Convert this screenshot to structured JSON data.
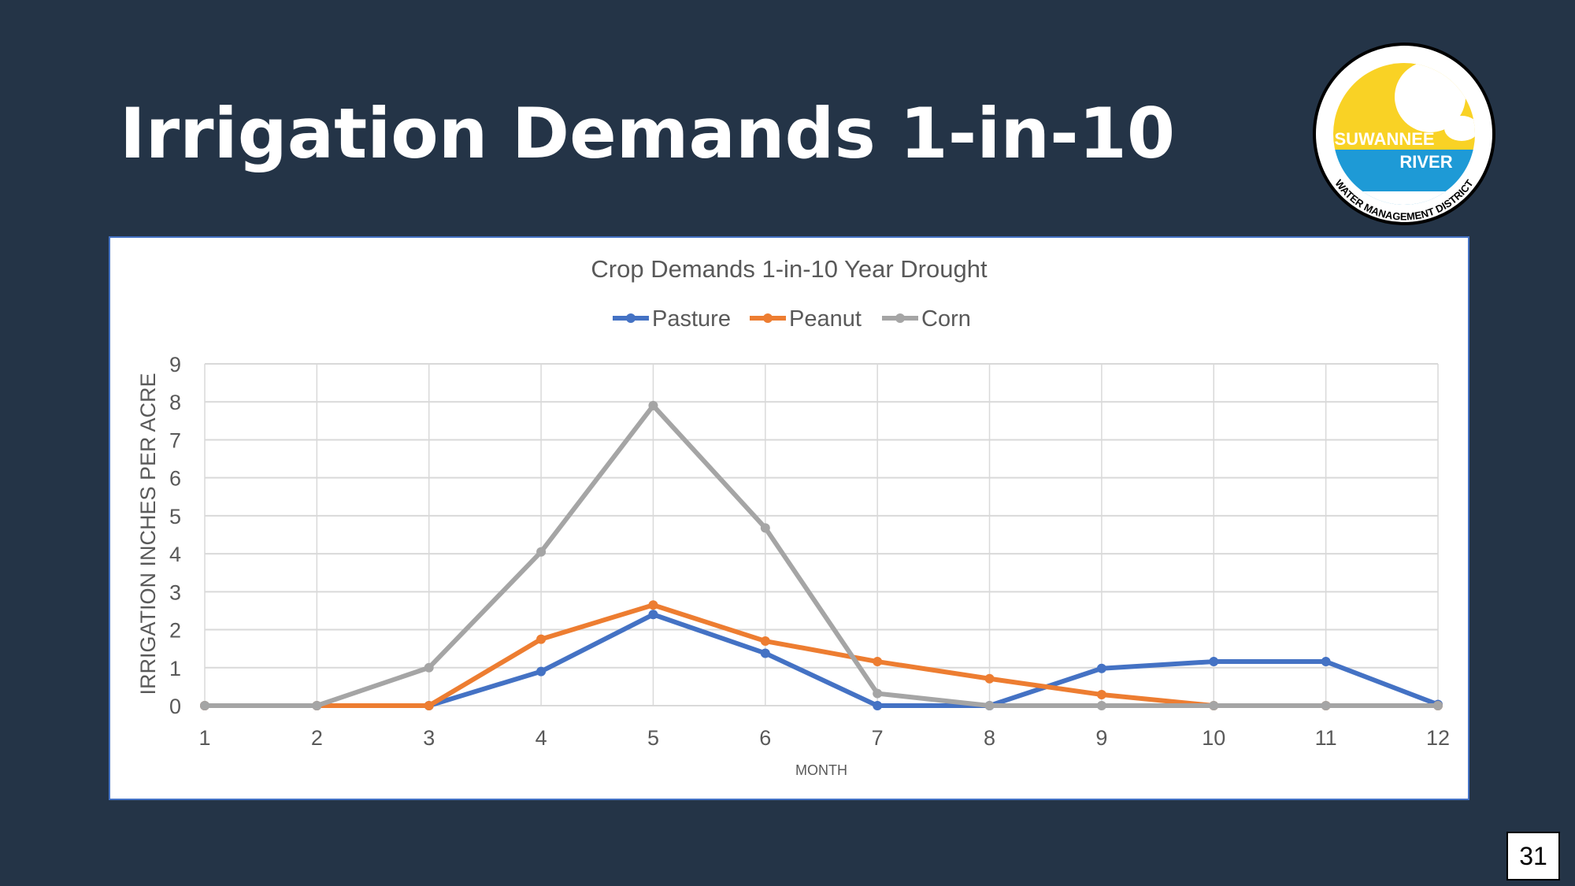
{
  "slide": {
    "title": "Irrigation Demands 1-in-10",
    "page_number": "31",
    "logo": {
      "line1": "SUWANNEE",
      "line2": "RIVER",
      "ring_text": "WATER MANAGEMENT DISTRICT",
      "colors": {
        "sun": "#f9d225",
        "water": "#1e9ad6"
      }
    }
  },
  "chart_data": {
    "type": "line",
    "title": "Crop Demands 1-in-10 Year Drought",
    "xlabel": "MONTH",
    "ylabel": "IRRIGATION INCHES PER ACRE",
    "x": [
      1,
      2,
      3,
      4,
      5,
      6,
      7,
      8,
      9,
      10,
      11,
      12
    ],
    "ylim": [
      0,
      9
    ],
    "yticks": [
      0,
      1,
      2,
      3,
      4,
      5,
      6,
      7,
      8,
      9
    ],
    "grid": true,
    "legend_position": "top",
    "series": [
      {
        "name": "Pasture",
        "color": "#4472c4",
        "values": [
          0,
          0,
          0,
          0.9,
          2.4,
          1.38,
          0,
          0,
          0.98,
          1.16,
          1.16,
          0.03
        ]
      },
      {
        "name": "Peanut",
        "color": "#ed7d31",
        "values": [
          0,
          0,
          0,
          1.75,
          2.65,
          1.7,
          1.16,
          0.71,
          0.29,
          0,
          0,
          0
        ]
      },
      {
        "name": "Corn",
        "color": "#a5a5a5",
        "values": [
          0,
          0,
          1.0,
          4.05,
          7.9,
          4.68,
          0.32,
          0,
          0,
          0,
          0,
          0
        ]
      }
    ]
  }
}
